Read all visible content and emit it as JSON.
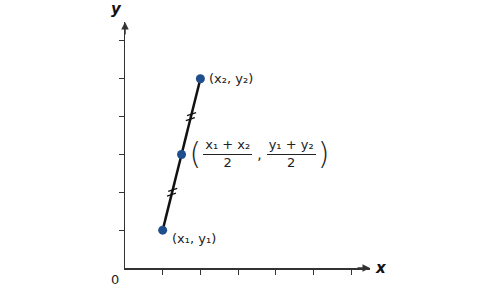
{
  "chart_data": {
    "type": "line",
    "x": [
      1,
      1.5,
      2
    ],
    "values": [
      1,
      3,
      5
    ],
    "color": "#1f4e8c",
    "marker": "circle",
    "xlabel": "x",
    "ylabel": "y",
    "xlim": [
      0,
      6.5
    ],
    "ylim": [
      0,
      6.5
    ],
    "xticks": [
      1,
      2,
      3,
      4,
      5,
      6
    ],
    "yticks": [
      1,
      2,
      3,
      4,
      5,
      6
    ],
    "tick_labels": false,
    "grid": false,
    "annotations": [
      {
        "x": 0,
        "y": 0,
        "text": "0"
      },
      {
        "x": 2,
        "y": 5,
        "text": "(x₂, y₂)"
      },
      {
        "x": 1,
        "y": 1,
        "text": "(x₁, y₁)"
      }
    ],
    "midpoint_label": {
      "x": 1.5,
      "y": 3,
      "parts": [
        "(",
        {
          "num": "x₁ + x₂",
          "den": "2"
        },
        ",",
        {
          "num": "y₁ + y₂",
          "den": "2"
        },
        ")"
      ]
    }
  }
}
